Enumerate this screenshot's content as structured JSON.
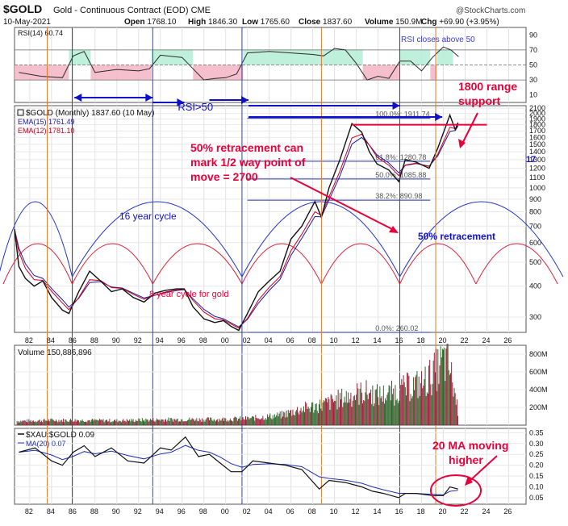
{
  "header": {
    "symbol": "$GOLD",
    "name": "Gold - Continuous Contract (EOD)",
    "exchange": "CME",
    "copyright": "@StockCharts.com",
    "date": "10-May-2021",
    "open_label": "Open",
    "open": "1768.10",
    "high_label": "High",
    "high": "1846.30",
    "low_label": "Low",
    "low": "1765.60",
    "close_label": "Close",
    "close": "1837.60",
    "volume_label": "Volume",
    "volume": "150.9M",
    "change_label": "Chg",
    "change": "+69.90 (+3.95%)"
  },
  "colors": {
    "price": "#111111",
    "ema15": "#1a1aa0",
    "ema12": "#cc0022",
    "annotation_red": "#e8003a",
    "annotation_blue": "#1010cc",
    "rsi_green": "#b8eed8",
    "rsi_red": "#f4b8c8",
    "volume_up": "#2e6b2e",
    "volume_down": "#a0203a"
  },
  "chart_data": [
    {
      "panel": "rsi",
      "type": "line",
      "legend": "RSI(14) 60.74",
      "annotation": "RSI closes above 50",
      "yticks": [
        "90",
        "70",
        "50",
        "30",
        "10"
      ],
      "ylim": [
        0,
        100
      ],
      "x": [
        1981,
        1983,
        1985,
        1986,
        1987,
        1988,
        1990,
        1992,
        1993,
        1994,
        1996,
        1997,
        1998,
        1999,
        2000,
        2001,
        2002,
        2004,
        2006,
        2008,
        2009,
        2010,
        2011,
        2012,
        2013,
        2014,
        2015,
        2016,
        2017,
        2018,
        2019,
        2020,
        2020.7,
        2021.4
      ],
      "values": [
        40,
        35,
        33,
        62,
        68,
        40,
        44,
        42,
        45,
        63,
        60,
        45,
        30,
        32,
        33,
        38,
        66,
        68,
        66,
        64,
        62,
        72,
        70,
        52,
        30,
        35,
        32,
        55,
        55,
        42,
        60,
        74,
        70,
        61
      ]
    },
    {
      "panel": "price",
      "type": "line",
      "yscale": "log",
      "legend": "$GOLD (Monthly) 1837.60 (10 May)",
      "ema_legend_1": "EMA(15) 1761.49",
      "ema_legend_2": "EMA(12) 1781.10",
      "yticks": [
        "2100",
        "2000",
        "1900",
        "1800",
        "1700",
        "1600",
        "1500",
        "1400",
        "1300",
        "1200",
        "1100",
        "1000",
        "900",
        "800",
        "700",
        "600",
        "500",
        "400",
        "300"
      ],
      "ylim": [
        260,
        2150
      ],
      "xlim": [
        1980.6,
        2027.6
      ],
      "xticks": [
        "82",
        "84",
        "86",
        "88",
        "90",
        "92",
        "94",
        "96",
        "98",
        "00",
        "02",
        "04",
        "06",
        "08",
        "10",
        "12",
        "14",
        "16",
        "18",
        "20",
        "22",
        "24",
        "26"
      ],
      "x": [
        1980.6,
        1981,
        1981.6,
        1982.4,
        1983.2,
        1984,
        1985,
        1985.6,
        1986.5,
        1987.5,
        1988.5,
        1989.5,
        1990.5,
        1991.5,
        1992.5,
        1993.5,
        1994.5,
        1995.5,
        1996.2,
        1997,
        1998,
        1999,
        1999.8,
        2000.5,
        2001.2,
        2002,
        2003,
        2004,
        2005,
        2006,
        2007,
        2008.2,
        2008.8,
        2009.5,
        2010.5,
        2011.6,
        2012.5,
        2013.2,
        2013.9,
        2015,
        2015.9,
        2016.5,
        2017.5,
        2018.7,
        2019.5,
        2020.6,
        2021.1,
        2021.35
      ],
      "values": [
        680,
        480,
        430,
        400,
        420,
        360,
        320,
        310,
        380,
        460,
        420,
        380,
        390,
        360,
        345,
        375,
        385,
        390,
        390,
        330,
        295,
        285,
        290,
        275,
        265,
        310,
        380,
        420,
        460,
        620,
        700,
        880,
        760,
        1000,
        1300,
        1820,
        1680,
        1400,
        1250,
        1180,
        1060,
        1300,
        1270,
        1200,
        1450,
        1970,
        1720,
        1837
      ],
      "retracement_levels": [
        {
          "label": "100.0%: 1911.74",
          "value": 1911.74
        },
        {
          "label": "61.8%: 1280.78",
          "value": 1280.78
        },
        {
          "label": "50.0%: 1085.88",
          "value": 1085.88
        },
        {
          "label": "38.2%: 890.98",
          "value": 890.98
        },
        {
          "label": "0.0%: 260.02",
          "value": 260.02
        }
      ],
      "annotations": {
        "support": "1800 range support",
        "retracement_note": "50% retracement can mark 1/2 way point of move = 2700",
        "cycle16": "16 year cycle",
        "cycle8": "8 year cycle for gold",
        "retracement_50": "50% retracement",
        "rsi_gt_50": "RSI>50",
        "edge_label": "17"
      },
      "cycle_lows_16": [
        1985.9,
        2001.5,
        2016
      ],
      "cycle_lows_8": [
        1985.9,
        1993.3,
        2001.5,
        2008.8,
        2016,
        2023
      ]
    },
    {
      "panel": "volume",
      "type": "bar",
      "legend": "Volume 150,886,896",
      "yticks": [
        "800M",
        "600M",
        "400M",
        "200M"
      ],
      "ylim": [
        0,
        900
      ],
      "x": [
        1981,
        1984,
        1987,
        1990,
        1993,
        1996,
        1999,
        2002,
        2005,
        2007,
        2009,
        2010,
        2011,
        2012,
        2013,
        2014,
        2015,
        2016,
        2017,
        2018,
        2019,
        2019.5,
        2020,
        2020.5,
        2021,
        2021.35
      ],
      "values": [
        50,
        60,
        60,
        55,
        65,
        70,
        70,
        80,
        120,
        200,
        250,
        300,
        340,
        380,
        400,
        360,
        380,
        420,
        480,
        500,
        620,
        700,
        780,
        720,
        400,
        151
      ]
    },
    {
      "panel": "ratio",
      "type": "line",
      "legend": "$XAU:$GOLD 0.09",
      "ma_legend": "MA(20) 0.07",
      "annotation": "20 MA moving higher",
      "yticks": [
        "0.35",
        "0.30",
        "0.25",
        "0.20",
        "0.15",
        "0.10",
        "0.05"
      ],
      "ylim": [
        0.02,
        0.37
      ],
      "x": [
        1981,
        1982.5,
        1984,
        1985,
        1986,
        1987,
        1988,
        1989.5,
        1991,
        1992.5,
        1994,
        1995,
        1996.3,
        1997.5,
        1998.5,
        1999.5,
        2000.5,
        2001.5,
        2002.5,
        2004,
        2005.5,
        2007,
        2008.6,
        2009.5,
        2011,
        2012.5,
        2013.5,
        2014.5,
        2015.9,
        2016.5,
        2017.5,
        2019,
        2020,
        2020.6,
        2021.35
      ],
      "values": [
        0.26,
        0.28,
        0.22,
        0.2,
        0.26,
        0.29,
        0.24,
        0.28,
        0.22,
        0.21,
        0.28,
        0.27,
        0.33,
        0.24,
        0.25,
        0.21,
        0.17,
        0.17,
        0.22,
        0.21,
        0.2,
        0.18,
        0.09,
        0.13,
        0.12,
        0.1,
        0.08,
        0.07,
        0.05,
        0.07,
        0.07,
        0.06,
        0.06,
        0.1,
        0.09
      ]
    }
  ]
}
